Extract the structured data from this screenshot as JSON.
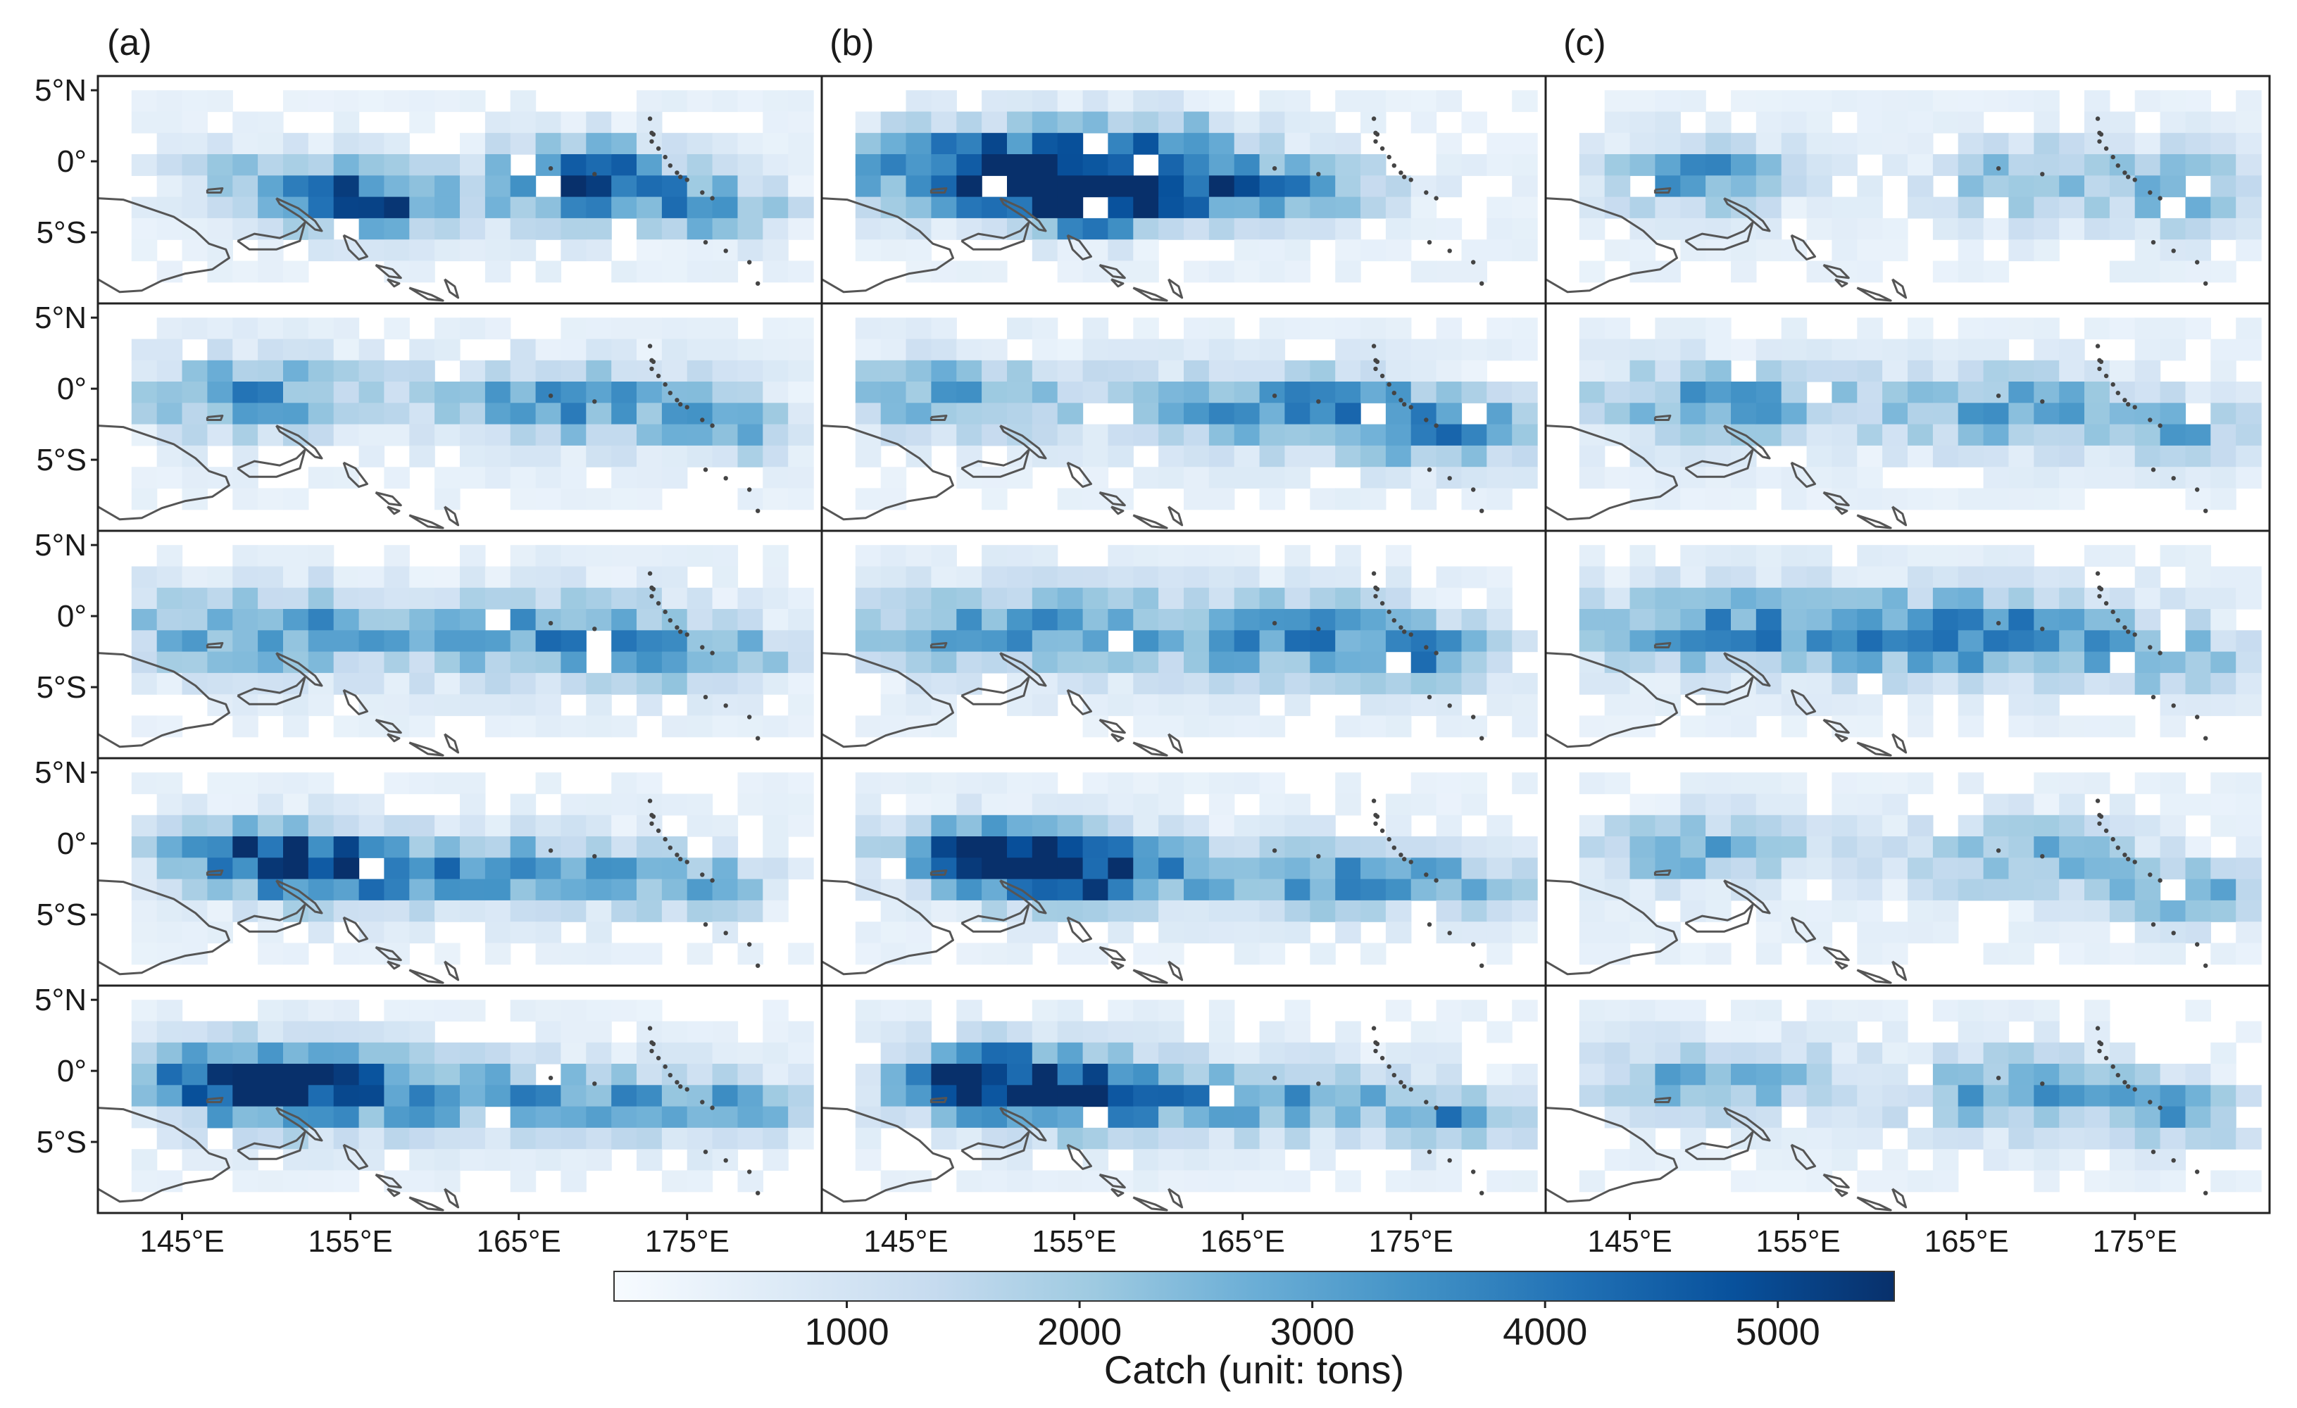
{
  "figure": {
    "panel_labels": [
      "(a)",
      "(b)",
      "(c)"
    ]
  },
  "chart_data": {
    "type": "heatmap",
    "title": "",
    "columns": [
      "(a)",
      "(b)",
      "(c)"
    ],
    "rows": 5,
    "xlabel": "",
    "ylabel": "",
    "lon_range": [
      140,
      183
    ],
    "lat_range": [
      -10,
      6
    ],
    "x_ticks": [
      145,
      155,
      165,
      175
    ],
    "x_tick_labels": [
      "145°E",
      "155°E",
      "165°E",
      "175°E"
    ],
    "y_ticks": [
      5,
      0,
      -5
    ],
    "y_tick_labels": [
      "5°N",
      "0°",
      "5°S"
    ],
    "colorbar": {
      "label": "Catch (unit: tons)",
      "ticks": [
        1000,
        2000,
        3000,
        4000,
        5000
      ],
      "tick_labels": [
        "1000",
        "2000",
        "3000",
        "4000",
        "5000"
      ],
      "range": [
        0,
        5500
      ],
      "colormap": [
        "#f7fbff",
        "#deebf7",
        "#c6dbef",
        "#9ecae1",
        "#6baed6",
        "#4292c6",
        "#2171b5",
        "#08519c",
        "#08306b"
      ]
    },
    "grid_cell_deg": 1.5,
    "catch_centers": [
      [
        [
          [
            156,
            -3,
            4500,
            3.5,
            1.6
          ],
          [
            169,
            -1.5,
            4800,
            4.0,
            2.0
          ],
          [
            150,
            -1,
            2000,
            4,
            1.5
          ],
          [
            177,
            -3.5,
            2600,
            3,
            1.5
          ]
        ],
        [
          [
            149,
            -0.5,
            2900,
            5,
            2
          ],
          [
            168,
            -1,
            3100,
            6,
            2
          ],
          [
            178,
            -3,
            2200,
            3,
            1.5
          ]
        ],
        [
          [
            150,
            -1,
            3000,
            7,
            2.2
          ],
          [
            168,
            -1.5,
            3000,
            6,
            2.2
          ],
          [
            177,
            -3,
            2400,
            3,
            1.5
          ]
        ],
        [
          [
            155,
            -2,
            4200,
            5,
            1.8
          ],
          [
            149,
            -0.5,
            3500,
            4,
            1.6
          ],
          [
            167,
            -2,
            2700,
            5,
            1.8
          ],
          [
            176,
            -3,
            2300,
            3,
            1.5
          ]
        ],
        [
          [
            154,
            -1.5,
            3800,
            6,
            2
          ],
          [
            148,
            -0.5,
            3400,
            4,
            1.8
          ],
          [
            169,
            -2,
            2700,
            6,
            1.8
          ],
          [
            178,
            -3,
            2200,
            3,
            1.5
          ]
        ]
      ],
      [
        [
          [
            151,
            -0.5,
            5200,
            7,
            2
          ],
          [
            156,
            -3,
            4800,
            4,
            1.5
          ],
          [
            167,
            -2,
            3300,
            5,
            1.5
          ],
          [
            160,
            1,
            2000,
            4,
            2
          ]
        ],
        [
          [
            148,
            -0.5,
            2700,
            6,
            2
          ],
          [
            168,
            -1.5,
            3500,
            6,
            2
          ],
          [
            177,
            -3,
            2900,
            4,
            1.8
          ]
        ],
        [
          [
            151,
            -1,
            3000,
            7,
            2.2
          ],
          [
            168,
            -1.5,
            3100,
            6,
            2.2
          ],
          [
            177,
            -3,
            2300,
            3,
            1.5
          ]
        ],
        [
          [
            155,
            -2,
            4800,
            5,
            1.8
          ],
          [
            149,
            -0.5,
            3800,
            4,
            1.6
          ],
          [
            169,
            -2.5,
            3000,
            5,
            1.8
          ],
          [
            178,
            -3,
            2300,
            3,
            1.5
          ]
        ],
        [
          [
            155,
            -1.5,
            4200,
            5,
            2
          ],
          [
            149,
            -0.5,
            3500,
            4,
            1.8
          ],
          [
            168,
            -2,
            2800,
            6,
            1.8
          ],
          [
            178,
            -3.5,
            2400,
            3,
            1.5
          ]
        ]
      ],
      [
        [
          [
            149,
            -1,
            3000,
            4,
            1.8
          ],
          [
            169,
            -1.5,
            2500,
            4,
            2
          ],
          [
            178,
            -2,
            2800,
            2.5,
            2
          ]
        ],
        [
          [
            150,
            -1,
            2700,
            6,
            2
          ],
          [
            168,
            -1.5,
            2700,
            6,
            2
          ],
          [
            178,
            -3,
            2100,
            3,
            1.5
          ]
        ],
        [
          [
            152,
            -1,
            3100,
            8,
            2.2
          ],
          [
            168,
            -1.5,
            3100,
            6,
            2.2
          ],
          [
            177,
            -3,
            2300,
            3,
            1.5
          ]
        ],
        [
          [
            149,
            -0.5,
            2500,
            5,
            1.8
          ],
          [
            168,
            -1,
            2400,
            5,
            2
          ],
          [
            178,
            -3.5,
            2700,
            3,
            1.5
          ]
        ],
        [
          [
            150,
            -0.5,
            2800,
            5,
            1.8
          ],
          [
            168,
            -1.5,
            2900,
            5,
            2
          ],
          [
            178,
            -3,
            2700,
            3,
            1.5
          ]
        ]
      ]
    ]
  }
}
